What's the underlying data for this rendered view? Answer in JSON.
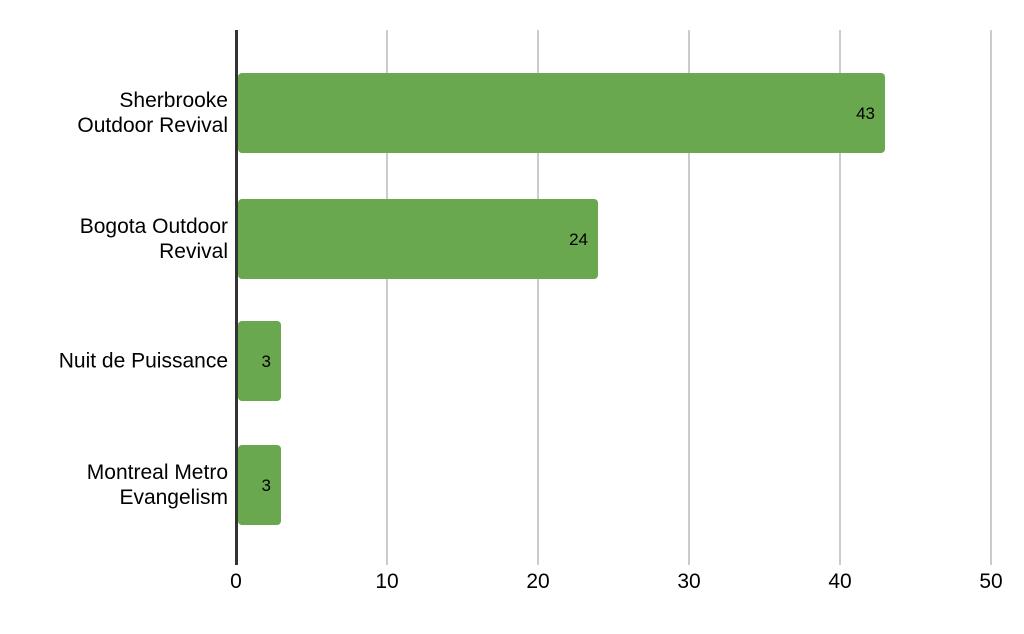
{
  "chart_data": {
    "type": "bar",
    "orientation": "horizontal",
    "categories": [
      "Sherbrooke Outdoor Revival",
      "Bogota Outdoor Revival",
      "Nuit de Puissance",
      "Montreal Metro Evangelism"
    ],
    "category_display": [
      "Sherbrooke\nOutdoor Revival",
      "Bogota Outdoor\nRevival",
      "Nuit de Puissance",
      "Montreal Metro\nEvangelism"
    ],
    "values": [
      43,
      24,
      3,
      3
    ],
    "value_labels": [
      "43",
      "24",
      "3",
      "3"
    ],
    "x_ticks": [
      "0",
      "10",
      "20",
      "30",
      "40",
      "50"
    ],
    "x_tick_values": [
      0,
      10,
      20,
      30,
      40,
      50
    ],
    "xlim": [
      0,
      50
    ],
    "grid": true,
    "legend": "none",
    "colors": {
      "bar": "#6aa84f",
      "axis_line": "#333333",
      "gridline": "#cccccc",
      "text": "#000000",
      "background": "#ffffff"
    }
  }
}
